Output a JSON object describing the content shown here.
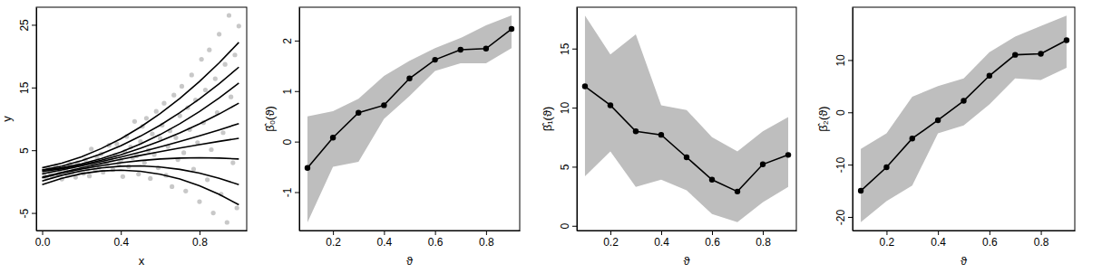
{
  "chart_data": [
    {
      "type": "scatter",
      "x_label": "x",
      "y_label": "y",
      "xlim": [
        -0.03,
        1.04
      ],
      "ylim": [
        -7.8,
        27.8
      ],
      "xticks": [
        {
          "value": 0,
          "label": "0.0"
        },
        {
          "value": 0.4,
          "label": "0.4"
        },
        {
          "value": 0.8,
          "label": "0.8"
        }
      ],
      "yticks": [
        -5,
        5,
        15,
        25
      ],
      "series": [
        {
          "type": "scatter",
          "color": "#c8c8c8",
          "marker": "circle",
          "x": [
            0.01,
            0.02,
            0.03,
            0.04,
            0.05,
            0.06,
            0.07,
            0.08,
            0.09,
            0.1,
            0.11,
            0.12,
            0.13,
            0.14,
            0.15,
            0.16,
            0.17,
            0.18,
            0.19,
            0.2,
            0.21,
            0.22,
            0.23,
            0.24,
            0.25,
            0.26,
            0.27,
            0.28,
            0.29,
            0.3,
            0.31,
            0.32,
            0.33,
            0.34,
            0.35,
            0.36,
            0.37,
            0.38,
            0.39,
            0.4,
            0.41,
            0.42,
            0.43,
            0.44,
            0.45,
            0.46,
            0.47,
            0.48,
            0.49,
            0.5,
            0.51,
            0.52,
            0.53,
            0.54,
            0.55,
            0.56,
            0.57,
            0.58,
            0.59,
            0.6,
            0.61,
            0.62,
            0.63,
            0.64,
            0.65,
            0.66,
            0.67,
            0.68,
            0.69,
            0.7,
            0.71,
            0.72,
            0.73,
            0.74,
            0.75,
            0.76,
            0.77,
            0.78,
            0.79,
            0.8,
            0.81,
            0.82,
            0.83,
            0.84,
            0.85,
            0.86,
            0.87,
            0.88,
            0.89,
            0.9,
            0.91,
            0.92,
            0.93,
            0.94,
            0.95,
            0.96,
            0.97,
            0.98,
            0.99,
            1.0
          ],
          "values": [
            1.2,
            0.6,
            2.1,
            1.5,
            0.9,
            1.8,
            2.5,
            1.1,
            1.6,
            0.4,
            2.2,
            1.9,
            1.0,
            2.8,
            1.4,
            2.0,
            0.7,
            3.0,
            1.7,
            2.4,
            1.3,
            3.5,
            2.0,
            0.9,
            5.2,
            2.6,
            1.8,
            3.9,
            2.3,
            4.4,
            1.5,
            3.1,
            2.7,
            5.8,
            3.6,
            1.9,
            4.2,
            6.0,
            2.9,
            3.4,
            0.8,
            4.8,
            7.2,
            2.4,
            5.5,
            3.8,
            9.6,
            4.1,
            1.2,
            6.4,
            8.8,
            3.0,
            10.1,
            5.0,
            0.5,
            7.6,
            4.3,
            11.2,
            2.2,
            6.9,
            9.0,
            12.5,
            1.0,
            5.6,
            8.1,
            -0.8,
            13.8,
            7.0,
            3.5,
            10.5,
            15.2,
            4.6,
            -1.5,
            11.8,
            8.3,
            17.0,
            2.0,
            13.0,
            6.2,
            -3.2,
            19.5,
            9.4,
            14.6,
            0.3,
            21.0,
            5.1,
            -5.0,
            16.4,
            11.0,
            23.5,
            -2.0,
            7.8,
            18.7,
            -6.5,
            26.5,
            13.5,
            3.0,
            20.2,
            -4.2,
            24.8
          ]
        },
        {
          "type": "line",
          "color": "#000000",
          "x": [
            0,
            0.1,
            0.2,
            0.3,
            0.4,
            0.5,
            0.6,
            0.7,
            0.8,
            0.9,
            1.0
          ],
          "values": [
            -0.5,
            0.53,
            1.26,
            1.69,
            1.82,
            1.65,
            1.18,
            0.41,
            -0.66,
            -2.03,
            -3.7
          ]
        },
        {
          "type": "line",
          "color": "#000000",
          "x": [
            0,
            0.1,
            0.2,
            0.3,
            0.4,
            0.5,
            0.6,
            0.7,
            0.8,
            0.9,
            1.0
          ],
          "values": [
            0.1,
            1.01,
            1.71,
            2.19,
            2.45,
            2.5,
            2.33,
            1.95,
            1.35,
            0.53,
            -0.5
          ]
        },
        {
          "type": "line",
          "color": "#000000",
          "x": [
            0,
            0.1,
            0.2,
            0.3,
            0.4,
            0.5,
            0.6,
            0.7,
            0.8,
            0.9,
            1.0
          ],
          "values": [
            0.6,
            1.35,
            2.0,
            2.55,
            3.0,
            3.35,
            3.6,
            3.75,
            3.8,
            3.75,
            3.6
          ]
        },
        {
          "type": "line",
          "color": "#000000",
          "x": [
            0,
            0.1,
            0.2,
            0.3,
            0.4,
            0.5,
            0.6,
            0.7,
            0.8,
            0.9,
            1.0
          ],
          "values": [
            0.7,
            1.46,
            2.18,
            2.88,
            3.54,
            4.18,
            4.78,
            5.36,
            5.9,
            6.42,
            6.9
          ]
        },
        {
          "type": "line",
          "color": "#000000",
          "x": [
            0,
            0.1,
            0.2,
            0.3,
            0.4,
            0.5,
            0.6,
            0.7,
            0.8,
            0.9,
            1.0
          ],
          "values": [
            1.25,
            1.85,
            2.5,
            3.19,
            3.92,
            4.7,
            5.52,
            6.39,
            7.3,
            8.25,
            9.25
          ]
        },
        {
          "type": "line",
          "color": "#000000",
          "x": [
            0,
            0.1,
            0.2,
            0.3,
            0.4,
            0.5,
            0.6,
            0.7,
            0.8,
            0.9,
            1.0
          ],
          "values": [
            1.6,
            2.06,
            2.66,
            3.4,
            4.28,
            5.3,
            6.46,
            7.76,
            9.2,
            10.78,
            12.5
          ]
        },
        {
          "type": "line",
          "color": "#000000",
          "x": [
            0,
            0.1,
            0.2,
            0.3,
            0.4,
            0.5,
            0.6,
            0.7,
            0.8,
            0.9,
            1.0
          ],
          "values": [
            1.8,
            2.2,
            2.82,
            3.66,
            4.72,
            6.0,
            7.5,
            9.22,
            11.16,
            13.32,
            15.7
          ]
        },
        {
          "type": "line",
          "color": "#000000",
          "x": [
            0,
            0.1,
            0.2,
            0.3,
            0.4,
            0.5,
            0.6,
            0.7,
            0.8,
            0.9,
            1.0
          ],
          "values": [
            1.85,
            2.48,
            3.34,
            4.42,
            5.72,
            7.25,
            9.0,
            10.98,
            13.18,
            15.6,
            18.25
          ]
        },
        {
          "type": "line",
          "color": "#000000",
          "x": [
            0,
            0.1,
            0.2,
            0.3,
            0.4,
            0.5,
            0.6,
            0.7,
            0.8,
            0.9,
            1.0
          ],
          "values": [
            2.2,
            2.94,
            3.96,
            5.26,
            6.84,
            8.7,
            10.84,
            13.26,
            15.96,
            18.94,
            22.2
          ]
        }
      ]
    },
    {
      "type": "line",
      "x_label": "ϑ",
      "y_label": "β̂₀(ϑ)",
      "xlim": [
        0.068,
        0.932
      ],
      "ylim": [
        -1.76,
        2.66
      ],
      "xticks": [
        0.2,
        0.4,
        0.6,
        0.8
      ],
      "yticks": [
        -1,
        0,
        1,
        2
      ],
      "x": [
        0.1,
        0.2,
        0.3,
        0.4,
        0.5,
        0.6,
        0.7,
        0.8,
        0.9
      ],
      "series": [
        {
          "color": "#000000",
          "marker": "circle",
          "values": [
            -0.52,
            0.08,
            0.57,
            0.72,
            1.25,
            1.62,
            1.82,
            1.84,
            2.23
          ],
          "lower": [
            -1.6,
            -0.5,
            -0.4,
            0.45,
            0.9,
            1.4,
            1.55,
            1.55,
            1.85
          ],
          "upper": [
            0.5,
            0.6,
            0.85,
            1.3,
            1.6,
            1.85,
            2.05,
            2.3,
            2.5
          ]
        }
      ]
    },
    {
      "type": "line",
      "x_label": "ϑ",
      "y_label": "β̂₁(ϑ)",
      "xlim": [
        0.068,
        0.932
      ],
      "ylim": [
        -0.4,
        18.5
      ],
      "xticks": [
        0.2,
        0.4,
        0.6,
        0.8
      ],
      "yticks": [
        0,
        5,
        10,
        15
      ],
      "x": [
        0.1,
        0.2,
        0.3,
        0.4,
        0.5,
        0.6,
        0.7,
        0.8,
        0.9
      ],
      "series": [
        {
          "color": "#000000",
          "marker": "circle",
          "values": [
            11.8,
            10.2,
            8.0,
            7.7,
            5.8,
            3.9,
            2.9,
            5.2,
            6.0
          ],
          "lower": [
            4.2,
            6.3,
            3.3,
            3.9,
            3.0,
            1.0,
            0.3,
            2.0,
            3.3
          ],
          "upper": [
            17.8,
            14.5,
            16.2,
            10.2,
            9.8,
            7.5,
            6.3,
            8.0,
            9.2
          ]
        }
      ]
    },
    {
      "type": "line",
      "x_label": "ϑ",
      "y_label": "β̂₂(ϑ)",
      "xlim": [
        0.068,
        0.932
      ],
      "ylim": [
        -22.6,
        20.1
      ],
      "xticks": [
        0.2,
        0.4,
        0.6,
        0.8
      ],
      "yticks": [
        -20,
        -10,
        0,
        10
      ],
      "x": [
        0.1,
        0.2,
        0.3,
        0.4,
        0.5,
        0.6,
        0.7,
        0.8,
        0.9
      ],
      "series": [
        {
          "color": "#000000",
          "marker": "circle",
          "values": [
            -15,
            -10.5,
            -5,
            -1.5,
            2.2,
            7.0,
            11.0,
            11.2,
            13.8
          ],
          "lower": [
            -21,
            -17,
            -14,
            -4,
            -2.5,
            1.5,
            6.5,
            6.2,
            8.5
          ],
          "upper": [
            -7,
            -4,
            3,
            5,
            6.5,
            11.5,
            14.5,
            16.5,
            18.5
          ]
        }
      ]
    }
  ]
}
